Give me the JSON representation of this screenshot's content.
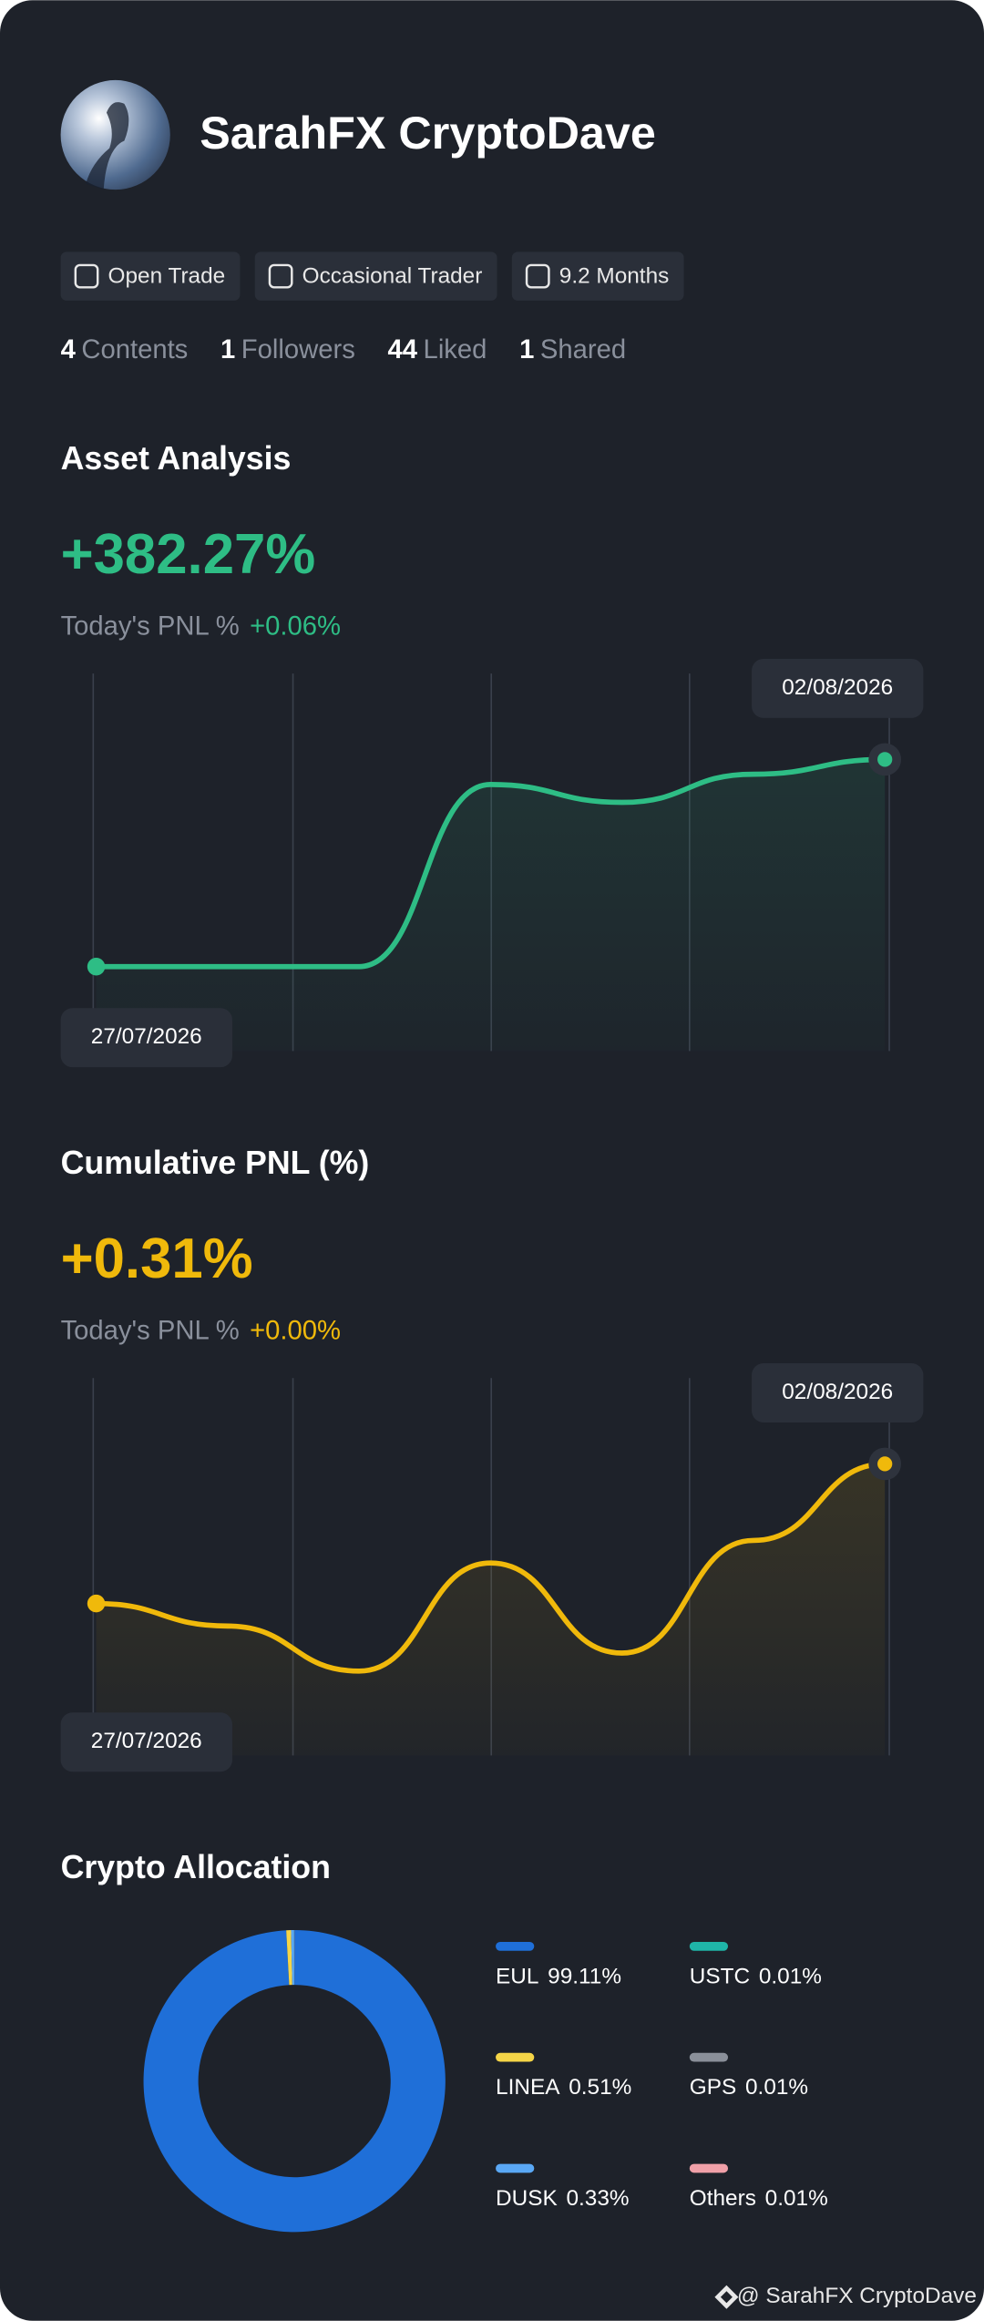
{
  "profile": {
    "name": "SarahFX CryptoDave",
    "badges": [
      "Open Trade",
      "Occasional Trader",
      "9.2 Months"
    ],
    "stats": [
      {
        "value": "4",
        "label": "Contents"
      },
      {
        "value": "1",
        "label": "Followers"
      },
      {
        "value": "44",
        "label": "Liked"
      },
      {
        "value": "1",
        "label": "Shared"
      }
    ]
  },
  "chart_data": [
    {
      "type": "line",
      "title": "Asset Analysis",
      "headline": "+382.27%",
      "today_label": "Today's PNL %",
      "today_value": "+0.06%",
      "start_label": "27/07/2026",
      "end_label": "02/08/2026",
      "color": "#2ebd85",
      "values": [
        0,
        0,
        0,
        336,
        303,
        355,
        382.27
      ]
    },
    {
      "type": "line",
      "title": "Cumulative PNL (%)",
      "headline": "+0.31%",
      "today_label": "Today's PNL %",
      "today_value": "+0.00%",
      "start_label": "27/07/2026",
      "end_label": "02/08/2026",
      "color": "#f0b90b",
      "values": [
        0,
        -0.05,
        -0.15,
        0.09,
        -0.11,
        0.14,
        0.31
      ]
    },
    {
      "type": "pie",
      "title": "Crypto Allocation",
      "donut": true,
      "categories": [
        "EUL",
        "LINEA",
        "DUSK",
        "USTC",
        "GPS",
        "Others"
      ],
      "values": [
        99.11,
        0.51,
        0.33,
        0.01,
        0.01,
        0.01
      ],
      "value_labels": [
        "99.11%",
        "0.51%",
        "0.33%",
        "0.01%",
        "0.01%",
        "0.01%"
      ],
      "colors": [
        "#1f6fd8",
        "#f5d547",
        "#5aa8f5",
        "#1fb5a8",
        "#8a8f99",
        "#f0a0a8"
      ]
    }
  ],
  "footer": "@ SarahFX CryptoDave"
}
